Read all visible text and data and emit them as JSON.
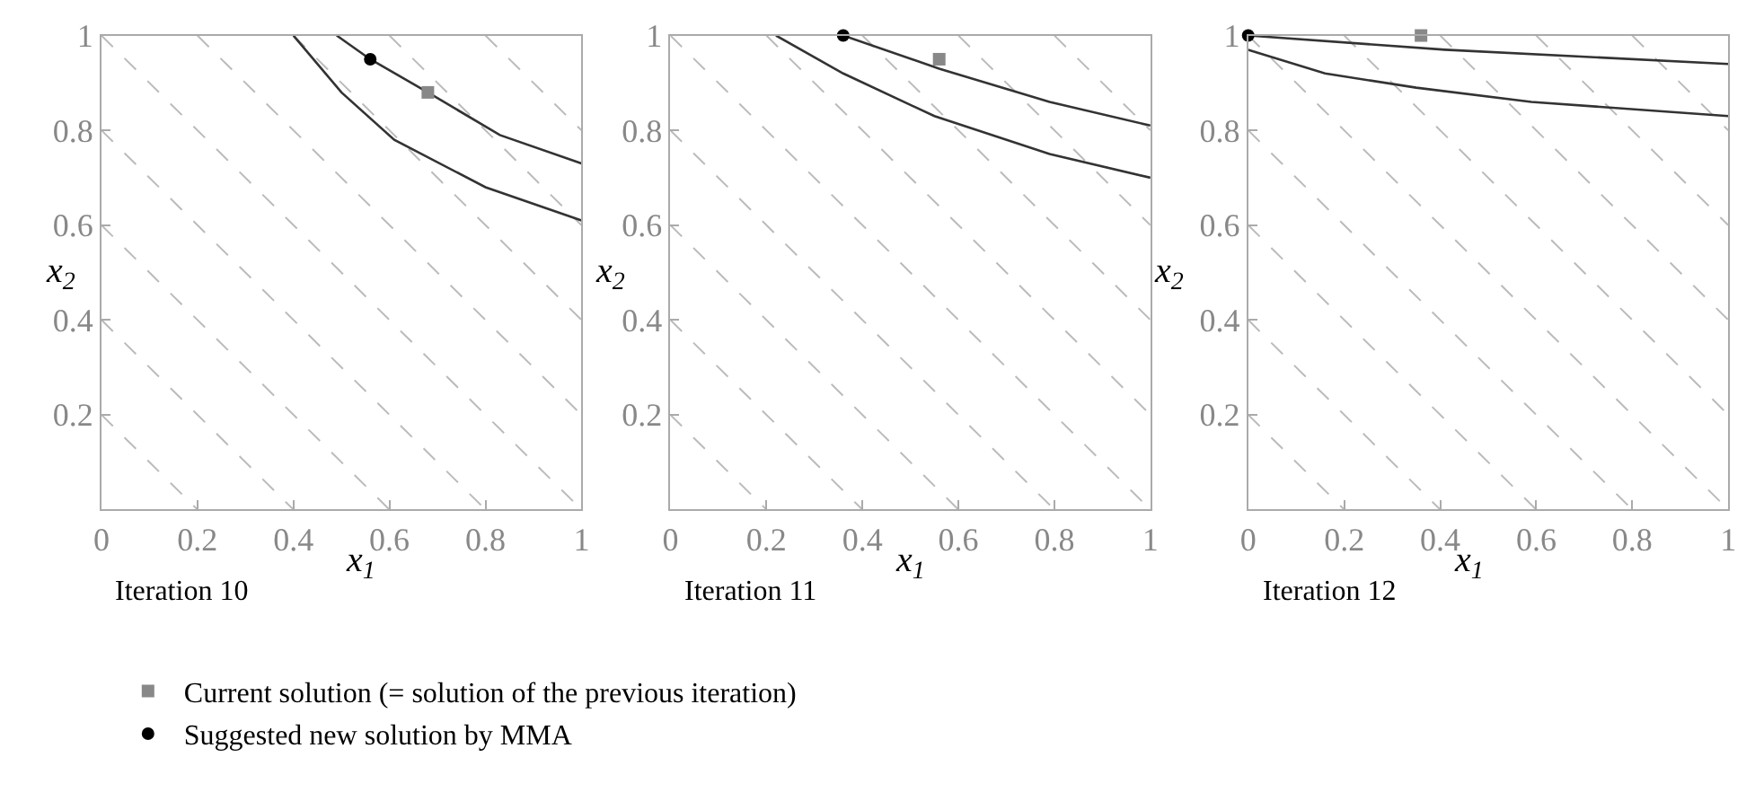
{
  "chart_data": [
    {
      "type": "line",
      "title": "Iteration 10",
      "xlabel": "x$_{1}$",
      "ylabel": "x$_{2}$",
      "xlim": [
        0,
        1
      ],
      "ylim": [
        0,
        1
      ],
      "xticks": [
        0,
        0.2,
        0.4,
        0.6,
        0.8,
        1
      ],
      "yticks": [
        0.2,
        0.4,
        0.6,
        0.8,
        1
      ],
      "legend": "bottom",
      "series": [
        {
          "color": "#bbbbbb",
          "line_style": "dashed",
          "x": [
            0,
            0.2
          ],
          "values": [
            0.2,
            0
          ]
        },
        {
          "color": "#bbbbbb",
          "line_style": "dashed",
          "x": [
            0,
            0.4
          ],
          "values": [
            0.4,
            0
          ]
        },
        {
          "color": "#bbbbbb",
          "line_style": "dashed",
          "x": [
            0,
            0.6
          ],
          "values": [
            0.6,
            0
          ]
        },
        {
          "color": "#bbbbbb",
          "line_style": "dashed",
          "x": [
            0,
            0.8
          ],
          "values": [
            0.8,
            0
          ]
        },
        {
          "color": "#bbbbbb",
          "line_style": "dashed",
          "x": [
            0,
            1
          ],
          "values": [
            1,
            0
          ]
        },
        {
          "color": "#bbbbbb",
          "line_style": "dashed",
          "x": [
            0.2,
            1
          ],
          "values": [
            1,
            0.2
          ]
        },
        {
          "color": "#bbbbbb",
          "line_style": "dashed",
          "x": [
            0.4,
            1
          ],
          "values": [
            1,
            0.4
          ]
        },
        {
          "color": "#bbbbbb",
          "line_style": "dashed",
          "x": [
            0.6,
            1
          ],
          "values": [
            1,
            0.6
          ]
        },
        {
          "color": "#bbbbbb",
          "line_style": "dashed",
          "x": [
            0.8,
            1
          ],
          "values": [
            1,
            0.8
          ]
        },
        {
          "color": "#333333",
          "line_style": "solid",
          "x": [
            0.49,
            0.56,
            0.68,
            0.83,
            1
          ],
          "values": [
            1,
            0.95,
            0.88,
            0.79,
            0.73
          ]
        },
        {
          "color": "#333333",
          "line_style": "solid",
          "x": [
            0.4,
            0.5,
            0.61,
            0.8,
            1
          ],
          "values": [
            1,
            0.88,
            0.78,
            0.68,
            0.61
          ]
        },
        {
          "type": "scatter",
          "name": "Current solution (= solution of the previous iteration)",
          "color": "#888888",
          "marker": "square",
          "x": [
            0.68
          ],
          "values": [
            0.88
          ]
        },
        {
          "type": "scatter",
          "name": "Suggested new solution by MMA",
          "color": "#000000",
          "marker": "circle",
          "x": [
            0.56
          ],
          "values": [
            0.95
          ]
        }
      ]
    },
    {
      "type": "line",
      "title": "Iteration 11",
      "xlabel": "x$_{1}$",
      "ylabel": "x$_{2}$",
      "xlim": [
        0,
        1
      ],
      "ylim": [
        0,
        1
      ],
      "xticks": [
        0,
        0.2,
        0.4,
        0.6,
        0.8,
        1
      ],
      "yticks": [
        0.2,
        0.4,
        0.6,
        0.8,
        1
      ],
      "series": [
        {
          "color": "#bbbbbb",
          "line_style": "dashed",
          "x": [
            0,
            0.2
          ],
          "values": [
            0.2,
            0
          ]
        },
        {
          "color": "#bbbbbb",
          "line_style": "dashed",
          "x": [
            0,
            0.4
          ],
          "values": [
            0.4,
            0
          ]
        },
        {
          "color": "#bbbbbb",
          "line_style": "dashed",
          "x": [
            0,
            0.6
          ],
          "values": [
            0.6,
            0
          ]
        },
        {
          "color": "#bbbbbb",
          "line_style": "dashed",
          "x": [
            0,
            0.8
          ],
          "values": [
            0.8,
            0
          ]
        },
        {
          "color": "#bbbbbb",
          "line_style": "dashed",
          "x": [
            0,
            1
          ],
          "values": [
            1,
            0
          ]
        },
        {
          "color": "#bbbbbb",
          "line_style": "dashed",
          "x": [
            0.2,
            1
          ],
          "values": [
            1,
            0.2
          ]
        },
        {
          "color": "#bbbbbb",
          "line_style": "dashed",
          "x": [
            0.4,
            1
          ],
          "values": [
            1,
            0.4
          ]
        },
        {
          "color": "#bbbbbb",
          "line_style": "dashed",
          "x": [
            0.6,
            1
          ],
          "values": [
            1,
            0.6
          ]
        },
        {
          "color": "#bbbbbb",
          "line_style": "dashed",
          "x": [
            0.8,
            1
          ],
          "values": [
            1,
            0.8
          ]
        },
        {
          "color": "#333333",
          "line_style": "solid",
          "x": [
            0.36,
            0.56,
            0.79,
            1
          ],
          "values": [
            1,
            0.93,
            0.86,
            0.81
          ]
        },
        {
          "color": "#333333",
          "line_style": "solid",
          "x": [
            0.22,
            0.36,
            0.55,
            0.79,
            1
          ],
          "values": [
            1,
            0.92,
            0.83,
            0.75,
            0.7
          ]
        },
        {
          "type": "scatter",
          "color": "#888888",
          "marker": "square",
          "x": [
            0.56
          ],
          "values": [
            0.95
          ]
        },
        {
          "type": "scatter",
          "color": "#000000",
          "marker": "circle",
          "x": [
            0.36
          ],
          "values": [
            1
          ]
        }
      ]
    },
    {
      "type": "line",
      "title": "Iteration 12",
      "xlabel": "x$_{1}$",
      "ylabel": "x$_{2}$",
      "xlim": [
        0,
        1
      ],
      "ylim": [
        0,
        1
      ],
      "xticks": [
        0,
        0.2,
        0.4,
        0.6,
        0.8,
        1
      ],
      "yticks": [
        0.2,
        0.4,
        0.6,
        0.8,
        1
      ],
      "series": [
        {
          "color": "#bbbbbb",
          "line_style": "dashed",
          "x": [
            0,
            0.2
          ],
          "values": [
            0.2,
            0
          ]
        },
        {
          "color": "#bbbbbb",
          "line_style": "dashed",
          "x": [
            0,
            0.4
          ],
          "values": [
            0.4,
            0
          ]
        },
        {
          "color": "#bbbbbb",
          "line_style": "dashed",
          "x": [
            0,
            0.6
          ],
          "values": [
            0.6,
            0
          ]
        },
        {
          "color": "#bbbbbb",
          "line_style": "dashed",
          "x": [
            0,
            0.8
          ],
          "values": [
            0.8,
            0
          ]
        },
        {
          "color": "#bbbbbb",
          "line_style": "dashed",
          "x": [
            0,
            1
          ],
          "values": [
            1,
            0
          ]
        },
        {
          "color": "#bbbbbb",
          "line_style": "dashed",
          "x": [
            0.2,
            1
          ],
          "values": [
            1,
            0.2
          ]
        },
        {
          "color": "#bbbbbb",
          "line_style": "dashed",
          "x": [
            0.4,
            1
          ],
          "values": [
            1,
            0.4
          ]
        },
        {
          "color": "#bbbbbb",
          "line_style": "dashed",
          "x": [
            0.6,
            1
          ],
          "values": [
            1,
            0.6
          ]
        },
        {
          "color": "#bbbbbb",
          "line_style": "dashed",
          "x": [
            0.8,
            1
          ],
          "values": [
            1,
            0.8
          ]
        },
        {
          "color": "#333333",
          "line_style": "solid",
          "x": [
            0,
            0.41,
            1
          ],
          "values": [
            1,
            0.97,
            0.94
          ]
        },
        {
          "color": "#333333",
          "line_style": "solid",
          "x": [
            0,
            0.16,
            0.35,
            0.59,
            1
          ],
          "values": [
            0.97,
            0.92,
            0.89,
            0.86,
            0.83
          ]
        },
        {
          "type": "scatter",
          "color": "#888888",
          "marker": "square",
          "x": [
            0.36
          ],
          "values": [
            1
          ]
        },
        {
          "type": "scatter",
          "color": "#000000",
          "marker": "circle",
          "x": [
            0
          ],
          "values": [
            1
          ]
        }
      ]
    }
  ]
}
